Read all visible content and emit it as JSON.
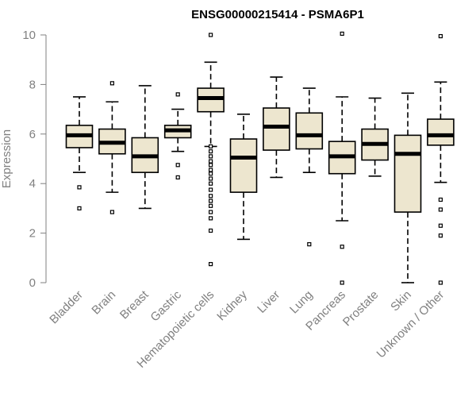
{
  "chart_data": {
    "type": "boxplot",
    "title": "ENSG00000215414 - PSMA6P1",
    "ylabel": "Expression",
    "ylim": [
      0,
      10
    ],
    "yticks": [
      0,
      2,
      4,
      6,
      8,
      10
    ],
    "grid": false,
    "box_fill": "#ede6cf",
    "box_stroke": "#000000",
    "axis_color": "#808080",
    "categories": [
      "Bladder",
      "Brain",
      "Breast",
      "Gastric",
      "Hematopoietic cells",
      "Kidney",
      "Liver",
      "Lung",
      "Pancreas",
      "Prostate",
      "Skin",
      "Unknown / Other"
    ],
    "boxes": [
      {
        "whisker_low": 4.45,
        "q1": 5.45,
        "median": 5.95,
        "q3": 6.35,
        "whisker_high": 7.5,
        "outliers": [
          3.85,
          3.0
        ]
      },
      {
        "whisker_low": 3.65,
        "q1": 5.2,
        "median": 5.65,
        "q3": 6.2,
        "whisker_high": 7.3,
        "outliers": [
          8.05,
          2.85
        ]
      },
      {
        "whisker_low": 3.0,
        "q1": 4.45,
        "median": 5.1,
        "q3": 5.85,
        "whisker_high": 7.95,
        "outliers": []
      },
      {
        "whisker_low": 5.3,
        "q1": 5.85,
        "median": 6.15,
        "q3": 6.35,
        "whisker_high": 7.0,
        "outliers": [
          7.6,
          4.75,
          4.25
        ]
      },
      {
        "whisker_low": 5.5,
        "q1": 6.9,
        "median": 7.45,
        "q3": 7.85,
        "whisker_high": 8.9,
        "outliers": [
          10.0,
          5.5,
          5.3,
          5.1,
          4.9,
          4.75,
          4.55,
          4.4,
          4.2,
          4.0,
          3.75,
          3.5,
          3.3,
          3.1,
          2.85,
          2.6,
          2.1,
          0.75
        ]
      },
      {
        "whisker_low": 1.75,
        "q1": 3.65,
        "median": 5.05,
        "q3": 5.8,
        "whisker_high": 6.8,
        "outliers": []
      },
      {
        "whisker_low": 4.25,
        "q1": 5.35,
        "median": 6.3,
        "q3": 7.05,
        "whisker_high": 8.3,
        "outliers": []
      },
      {
        "whisker_low": 4.45,
        "q1": 5.4,
        "median": 5.95,
        "q3": 6.85,
        "whisker_high": 7.85,
        "outliers": [
          1.55
        ]
      },
      {
        "whisker_low": 2.5,
        "q1": 4.4,
        "median": 5.1,
        "q3": 5.7,
        "whisker_high": 7.5,
        "outliers": [
          10.05,
          1.45,
          0.0
        ]
      },
      {
        "whisker_low": 4.3,
        "q1": 4.95,
        "median": 5.6,
        "q3": 6.2,
        "whisker_high": 7.45,
        "outliers": []
      },
      {
        "whisker_low": 0.0,
        "q1": 2.85,
        "median": 5.2,
        "q3": 5.95,
        "whisker_high": 7.65,
        "outliers": []
      },
      {
        "whisker_low": 4.05,
        "q1": 5.55,
        "median": 5.95,
        "q3": 6.6,
        "whisker_high": 8.1,
        "outliers": [
          9.95,
          3.35,
          2.95,
          2.3,
          1.9,
          0.0
        ]
      }
    ]
  }
}
